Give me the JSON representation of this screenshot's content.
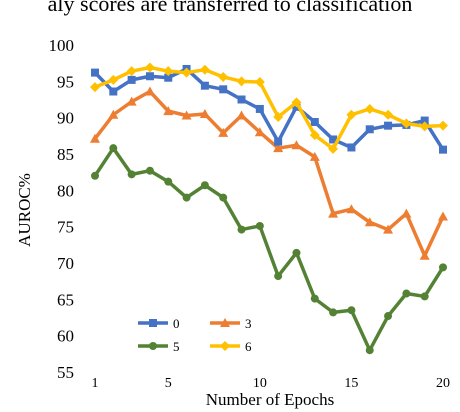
{
  "caption_fragment": "aly scores are transferred to classification",
  "chart_data": {
    "type": "line",
    "xlabel": "Number of Epochs",
    "ylabel": "AUROC%",
    "ylim": [
      55,
      100
    ],
    "xlim": [
      1,
      20
    ],
    "yticks": [
      55,
      60,
      65,
      70,
      75,
      80,
      85,
      90,
      95,
      100
    ],
    "xticks": [
      1,
      5,
      10,
      15,
      20
    ],
    "grid": false,
    "legend_position": "bottom-left",
    "x": [
      1,
      2,
      3,
      4,
      5,
      6,
      7,
      8,
      9,
      10,
      11,
      12,
      13,
      14,
      15,
      16,
      17,
      18,
      19,
      20
    ],
    "series": [
      {
        "name": "0",
        "color": "#4472C4",
        "marker": "square",
        "values": [
          96.2,
          93.6,
          95.2,
          95.7,
          95.5,
          96.7,
          94.4,
          93.9,
          92.5,
          91.2,
          86.7,
          91.5,
          89.4,
          87.0,
          85.9,
          88.4,
          88.9,
          89.0,
          89.6,
          85.6
        ]
      },
      {
        "name": "3",
        "color": "#ED7D31",
        "marker": "triangle",
        "values": [
          87.1,
          90.4,
          92.2,
          93.6,
          90.9,
          90.3,
          90.5,
          87.9,
          90.3,
          88.0,
          85.8,
          86.2,
          84.6,
          76.8,
          77.4,
          75.6,
          74.6,
          76.8,
          71.0,
          76.4
        ]
      },
      {
        "name": "5",
        "color": "#548235",
        "marker": "circle",
        "values": [
          82.0,
          85.8,
          82.2,
          82.7,
          81.2,
          79.0,
          80.7,
          79.0,
          74.6,
          75.1,
          68.2,
          71.4,
          65.1,
          63.2,
          63.5,
          58.0,
          62.7,
          65.8,
          65.4,
          69.4
        ]
      },
      {
        "name": "6",
        "color": "#FFC000",
        "marker": "diamond",
        "values": [
          94.2,
          95.2,
          96.4,
          96.9,
          96.4,
          96.2,
          96.6,
          95.6,
          95.0,
          94.9,
          90.1,
          92.1,
          87.6,
          85.7,
          90.4,
          91.2,
          90.4,
          89.2,
          88.8,
          88.9
        ]
      }
    ]
  }
}
